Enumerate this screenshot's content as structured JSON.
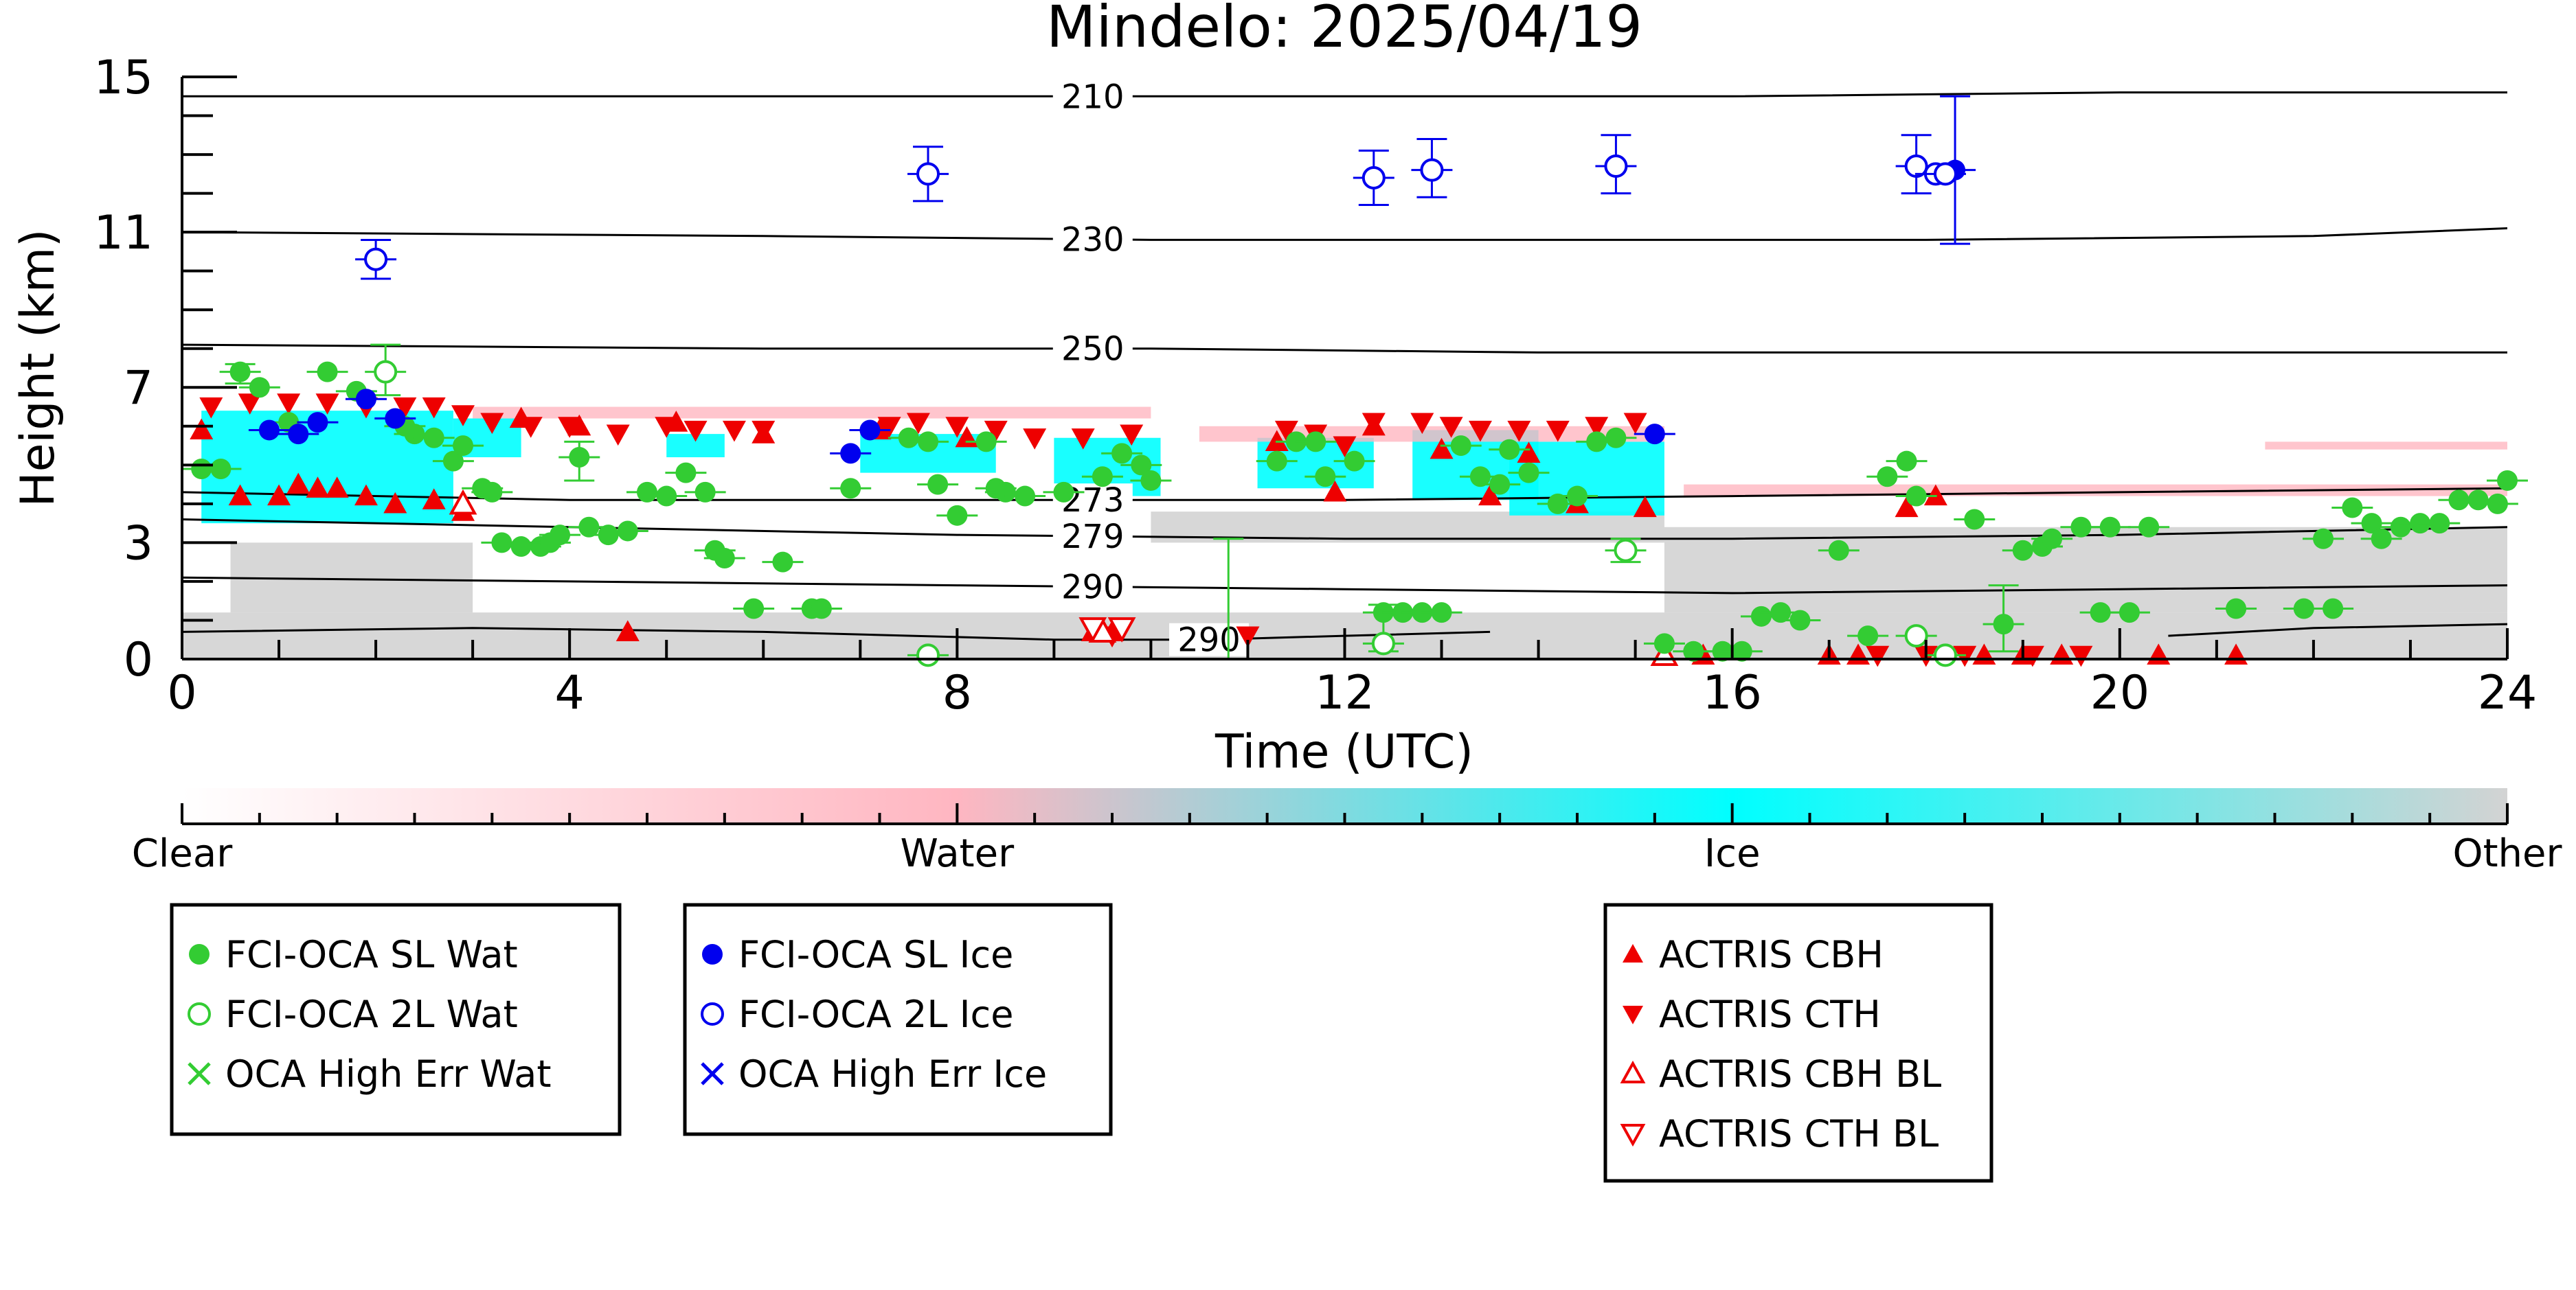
{
  "chart_data": {
    "type": "scatter",
    "title": "Mindelo: 2025/04/19",
    "xlabel": "Time (UTC)",
    "ylabel": "Height (km)",
    "xlim": [
      0,
      24
    ],
    "ylim": [
      0,
      15
    ],
    "xticks": [
      0,
      4,
      8,
      12,
      16,
      20,
      24
    ],
    "yticks": [
      0,
      3,
      7,
      11,
      15
    ],
    "colorbar": {
      "labels": [
        "Clear",
        "Water",
        "Ice",
        "Other"
      ],
      "colors": [
        "#ffffff",
        "#ffb6c1",
        "#00ffff",
        "#d3d3d3"
      ]
    },
    "temperature_contours": [
      {
        "label": "210",
        "label_x": 9.4,
        "points": [
          [
            0,
            14.5
          ],
          [
            8,
            14.5
          ],
          [
            12,
            14.5
          ],
          [
            16,
            14.5
          ],
          [
            20,
            14.6
          ],
          [
            24,
            14.6
          ]
        ]
      },
      {
        "label": "230",
        "label_x": 9.4,
        "points": [
          [
            0,
            11.0
          ],
          [
            6,
            10.9
          ],
          [
            10,
            10.8
          ],
          [
            14,
            10.8
          ],
          [
            18,
            10.8
          ],
          [
            22,
            10.9
          ],
          [
            24,
            11.1
          ]
        ]
      },
      {
        "label": "250",
        "label_x": 9.4,
        "points": [
          [
            0,
            8.1
          ],
          [
            6,
            8.0
          ],
          [
            10,
            8.0
          ],
          [
            14,
            7.9
          ],
          [
            18,
            7.9
          ],
          [
            22,
            7.9
          ],
          [
            24,
            7.9
          ]
        ]
      },
      {
        "label": "273",
        "label_x": 9.4,
        "points": [
          [
            0,
            4.3
          ],
          [
            4,
            4.1
          ],
          [
            8,
            4.1
          ],
          [
            12,
            4.1
          ],
          [
            16,
            4.2
          ],
          [
            20,
            4.3
          ],
          [
            24,
            4.4
          ]
        ]
      },
      {
        "label": "279",
        "label_x": 9.4,
        "points": [
          [
            0,
            3.6
          ],
          [
            4,
            3.4
          ],
          [
            8,
            3.2
          ],
          [
            12,
            3.1
          ],
          [
            16,
            3.1
          ],
          [
            20,
            3.2
          ],
          [
            24,
            3.4
          ]
        ]
      },
      {
        "label": "290",
        "label_x": 9.4,
        "points": [
          [
            0,
            2.1
          ],
          [
            4,
            2.0
          ],
          [
            8,
            1.9
          ],
          [
            12,
            1.8
          ],
          [
            16,
            1.7
          ],
          [
            20,
            1.8
          ],
          [
            24,
            1.9
          ]
        ]
      },
      {
        "label": "290",
        "label_x": 10.6,
        "points": [
          [
            0,
            0.7
          ],
          [
            3,
            0.8
          ],
          [
            6,
            0.7
          ],
          [
            9,
            0.5
          ],
          [
            10.6,
            0.5
          ],
          [
            12,
            0.6
          ],
          [
            13.5,
            0.7
          ]
        ]
      },
      {
        "label": "",
        "label_x": null,
        "points": [
          [
            20.5,
            0.6
          ],
          [
            22,
            0.8
          ],
          [
            24,
            0.9
          ]
        ]
      }
    ],
    "classification_shading": [
      {
        "class": "Other",
        "spans": [
          [
            0,
            0,
            24,
            1.2
          ],
          [
            0.5,
            1.2,
            3,
            3.0
          ],
          [
            15.3,
            1.2,
            24,
            3.4
          ],
          [
            10,
            3.0,
            15.3,
            3.8
          ]
        ]
      },
      {
        "class": "Ice",
        "spans": [
          [
            0.2,
            3.5,
            2.8,
            6.4
          ],
          [
            2.8,
            5.2,
            3.5,
            6.2
          ],
          [
            5,
            5.2,
            5.6,
            5.8
          ],
          [
            7.0,
            4.8,
            8.4,
            5.8
          ],
          [
            9.0,
            4.2,
            10.1,
            5.7
          ],
          [
            11.1,
            4.4,
            12.3,
            5.7
          ],
          [
            12.7,
            4.1,
            14.0,
            5.9
          ],
          [
            13.7,
            3.7,
            15.3,
            5.6
          ]
        ]
      },
      {
        "class": "Water",
        "spans": [
          [
            3,
            6.2,
            10,
            6.5
          ],
          [
            10.5,
            5.6,
            15.3,
            6.0
          ],
          [
            15.5,
            4.2,
            24,
            4.5
          ],
          [
            21.5,
            5.4,
            24,
            5.6
          ]
        ]
      }
    ],
    "series": [
      {
        "name": "FCI-OCA SL Wat",
        "marker": "filled-circle",
        "color": "#33cc33",
        "points": [
          [
            0.2,
            4.9
          ],
          [
            0.4,
            4.9
          ],
          [
            0.6,
            7.4
          ],
          [
            0.8,
            7.0
          ],
          [
            1.1,
            6.1
          ],
          [
            1.5,
            7.4
          ],
          [
            1.8,
            6.9
          ],
          [
            2.3,
            6.0
          ],
          [
            2.4,
            5.8
          ],
          [
            2.6,
            5.7
          ],
          [
            2.8,
            5.1
          ],
          [
            2.9,
            5.5
          ],
          [
            3.1,
            4.4
          ],
          [
            3.2,
            4.3
          ],
          [
            3.3,
            3.0
          ],
          [
            3.5,
            2.9
          ],
          [
            3.7,
            2.9
          ],
          [
            3.8,
            3.0
          ],
          [
            3.9,
            3.2
          ],
          [
            4.2,
            3.4
          ],
          [
            4.4,
            3.2
          ],
          [
            4.6,
            3.3
          ],
          [
            4.1,
            5.2
          ],
          [
            4.8,
            4.3
          ],
          [
            5.0,
            4.2
          ],
          [
            5.2,
            4.8
          ],
          [
            5.4,
            4.3
          ],
          [
            5.5,
            2.8
          ],
          [
            5.6,
            2.6
          ],
          [
            5.9,
            1.3
          ],
          [
            6.2,
            2.5
          ],
          [
            6.5,
            1.3
          ],
          [
            6.6,
            1.3
          ],
          [
            6.9,
            4.4
          ],
          [
            7.5,
            5.7
          ],
          [
            7.7,
            5.6
          ],
          [
            7.8,
            4.5
          ],
          [
            8.0,
            3.7
          ],
          [
            8.3,
            5.6
          ],
          [
            8.4,
            4.4
          ],
          [
            8.5,
            4.3
          ],
          [
            8.7,
            4.2
          ],
          [
            9.1,
            4.3
          ],
          [
            9.5,
            4.7
          ],
          [
            9.7,
            5.3
          ],
          [
            9.9,
            5.0
          ],
          [
            10.0,
            4.6
          ],
          [
            11.3,
            5.1
          ],
          [
            11.5,
            5.6
          ],
          [
            11.7,
            5.6
          ],
          [
            11.8,
            4.7
          ],
          [
            12.1,
            5.1
          ],
          [
            12.4,
            1.2
          ],
          [
            12.6,
            1.2
          ],
          [
            12.8,
            1.2
          ],
          [
            13.0,
            1.2
          ],
          [
            13.2,
            5.5
          ],
          [
            13.4,
            4.7
          ],
          [
            13.6,
            4.5
          ],
          [
            13.7,
            5.4
          ],
          [
            13.9,
            4.8
          ],
          [
            14.2,
            4.0
          ],
          [
            14.4,
            4.2
          ],
          [
            14.6,
            5.6
          ],
          [
            14.8,
            5.7
          ],
          [
            15.3,
            0.4
          ],
          [
            15.6,
            0.2
          ],
          [
            15.9,
            0.2
          ],
          [
            16.1,
            0.2
          ],
          [
            16.3,
            1.1
          ],
          [
            16.5,
            1.2
          ],
          [
            16.7,
            1.0
          ],
          [
            17.1,
            2.8
          ],
          [
            17.4,
            0.6
          ],
          [
            17.6,
            4.7
          ],
          [
            17.8,
            5.1
          ],
          [
            17.9,
            4.2
          ],
          [
            18.5,
            3.6
          ],
          [
            18.8,
            0.9
          ],
          [
            19.0,
            2.8
          ],
          [
            19.2,
            2.9
          ],
          [
            19.3,
            3.1
          ],
          [
            19.6,
            3.4
          ],
          [
            19.8,
            1.2
          ],
          [
            19.9,
            3.4
          ],
          [
            20.1,
            1.2
          ],
          [
            20.3,
            3.4
          ],
          [
            21.2,
            1.3
          ],
          [
            21.9,
            1.3
          ],
          [
            22.2,
            1.3
          ],
          [
            22.1,
            3.1
          ],
          [
            22.4,
            3.9
          ],
          [
            22.6,
            3.5
          ],
          [
            22.7,
            3.1
          ],
          [
            22.9,
            3.4
          ],
          [
            23.1,
            3.5
          ],
          [
            23.3,
            3.5
          ],
          [
            23.5,
            4.1
          ],
          [
            23.7,
            4.1
          ],
          [
            23.9,
            4.0
          ],
          [
            24.0,
            4.6
          ]
        ]
      },
      {
        "name": "FCI-OCA 2L Wat",
        "marker": "open-circle",
        "color": "#33cc33",
        "points": [
          [
            2.1,
            7.4
          ],
          [
            7.7,
            0.1
          ],
          [
            12.4,
            0.4
          ],
          [
            14.9,
            2.8
          ],
          [
            17.9,
            0.6
          ],
          [
            18.2,
            0.1
          ]
        ]
      },
      {
        "name": "FCI-OCA SL Ice",
        "marker": "filled-circle",
        "color": "#0000ee",
        "points": [
          [
            0.9,
            5.9
          ],
          [
            1.2,
            5.8
          ],
          [
            1.4,
            6.1
          ],
          [
            1.9,
            6.7
          ],
          [
            2.2,
            6.2
          ],
          [
            6.9,
            5.3
          ],
          [
            7.1,
            5.9
          ],
          [
            15.2,
            5.8
          ],
          [
            18.3,
            12.6
          ]
        ]
      },
      {
        "name": "FCI-OCA 2L Ice",
        "marker": "open-circle",
        "color": "#0000ee",
        "points": [
          [
            2.0,
            10.3
          ],
          [
            7.7,
            12.5
          ],
          [
            12.3,
            12.4
          ],
          [
            12.9,
            12.6
          ],
          [
            14.8,
            12.7
          ],
          [
            17.9,
            12.7
          ],
          [
            18.1,
            12.5
          ],
          [
            18.2,
            12.5
          ]
        ]
      },
      {
        "name": "OCA High Err Wat",
        "marker": "x",
        "color": "#33cc33",
        "points": []
      },
      {
        "name": "OCA High Err Ice",
        "marker": "x",
        "color": "#0000ee",
        "points": []
      },
      {
        "name": "ACTRIS CBH",
        "marker": "filled-triangle-up",
        "color": "#ee0000",
        "points": [
          [
            0.2,
            5.9
          ],
          [
            0.6,
            4.2
          ],
          [
            1.0,
            4.2
          ],
          [
            1.2,
            4.5
          ],
          [
            1.4,
            4.4
          ],
          [
            1.6,
            4.4
          ],
          [
            1.9,
            4.2
          ],
          [
            2.2,
            4.0
          ],
          [
            2.6,
            4.1
          ],
          [
            2.9,
            3.8
          ],
          [
            3.5,
            6.2
          ],
          [
            4.1,
            6.0
          ],
          [
            4.6,
            0.7
          ],
          [
            5.1,
            6.1
          ],
          [
            6.0,
            5.8
          ],
          [
            7.2,
            5.9
          ],
          [
            8.1,
            5.7
          ],
          [
            9.4,
            0.7
          ],
          [
            9.6,
            0.7
          ],
          [
            11.3,
            5.6
          ],
          [
            11.9,
            4.3
          ],
          [
            12.3,
            6.0
          ],
          [
            13.0,
            5.4
          ],
          [
            13.5,
            4.2
          ],
          [
            13.9,
            5.3
          ],
          [
            14.4,
            4.0
          ],
          [
            15.1,
            3.9
          ],
          [
            15.7,
            0.1
          ],
          [
            17.0,
            0.1
          ],
          [
            17.3,
            0.1
          ],
          [
            17.8,
            3.9
          ],
          [
            18.1,
            4.2
          ],
          [
            18.6,
            0.1
          ],
          [
            19.0,
            0.1
          ],
          [
            19.4,
            0.1
          ],
          [
            20.4,
            0.1
          ],
          [
            21.2,
            0.1
          ]
        ]
      },
      {
        "name": "ACTRIS CTH",
        "marker": "filled-triangle-down",
        "color": "#ee0000",
        "points": [
          [
            0.3,
            6.5
          ],
          [
            0.7,
            6.6
          ],
          [
            1.1,
            6.6
          ],
          [
            1.5,
            6.6
          ],
          [
            1.9,
            6.5
          ],
          [
            2.3,
            6.5
          ],
          [
            2.6,
            6.5
          ],
          [
            2.9,
            6.3
          ],
          [
            3.2,
            6.1
          ],
          [
            3.6,
            6.0
          ],
          [
            4.0,
            6.0
          ],
          [
            4.5,
            5.8
          ],
          [
            5.0,
            6.0
          ],
          [
            5.3,
            5.9
          ],
          [
            5.7,
            5.9
          ],
          [
            6.0,
            5.9
          ],
          [
            7.3,
            6.0
          ],
          [
            7.6,
            6.1
          ],
          [
            8.0,
            6.0
          ],
          [
            8.4,
            5.9
          ],
          [
            8.8,
            5.7
          ],
          [
            9.3,
            5.7
          ],
          [
            9.6,
            0.6
          ],
          [
            9.8,
            5.8
          ],
          [
            11.0,
            0.6
          ],
          [
            11.4,
            5.9
          ],
          [
            11.7,
            5.8
          ],
          [
            12.0,
            5.5
          ],
          [
            12.3,
            6.1
          ],
          [
            12.8,
            6.1
          ],
          [
            13.1,
            6.0
          ],
          [
            13.4,
            5.9
          ],
          [
            13.8,
            5.9
          ],
          [
            14.2,
            5.9
          ],
          [
            14.6,
            6.0
          ],
          [
            15.0,
            6.1
          ],
          [
            17.5,
            0.1
          ],
          [
            18.0,
            0.1
          ],
          [
            18.4,
            0.1
          ],
          [
            19.1,
            0.1
          ],
          [
            19.6,
            0.1
          ]
        ]
      },
      {
        "name": "ACTRIS CBH BL",
        "marker": "open-triangle-up",
        "color": "#ee0000",
        "points": [
          [
            2.9,
            4.0
          ],
          [
            9.5,
            0.7
          ],
          [
            15.3,
            0.1
          ]
        ]
      },
      {
        "name": "ACTRIS CTH BL",
        "marker": "open-triangle-down",
        "color": "#ee0000",
        "points": [
          [
            9.4,
            0.8
          ],
          [
            9.7,
            0.8
          ]
        ]
      }
    ],
    "legend_boxes": [
      [
        "FCI-OCA SL Wat",
        "FCI-OCA 2L Wat",
        "OCA High Err Wat"
      ],
      [
        "FCI-OCA SL Ice",
        "FCI-OCA 2L Ice",
        "OCA High Err Ice"
      ],
      [
        "ACTRIS CBH",
        "ACTRIS CTH",
        "ACTRIS CBH BL",
        "ACTRIS CTH BL"
      ]
    ]
  }
}
